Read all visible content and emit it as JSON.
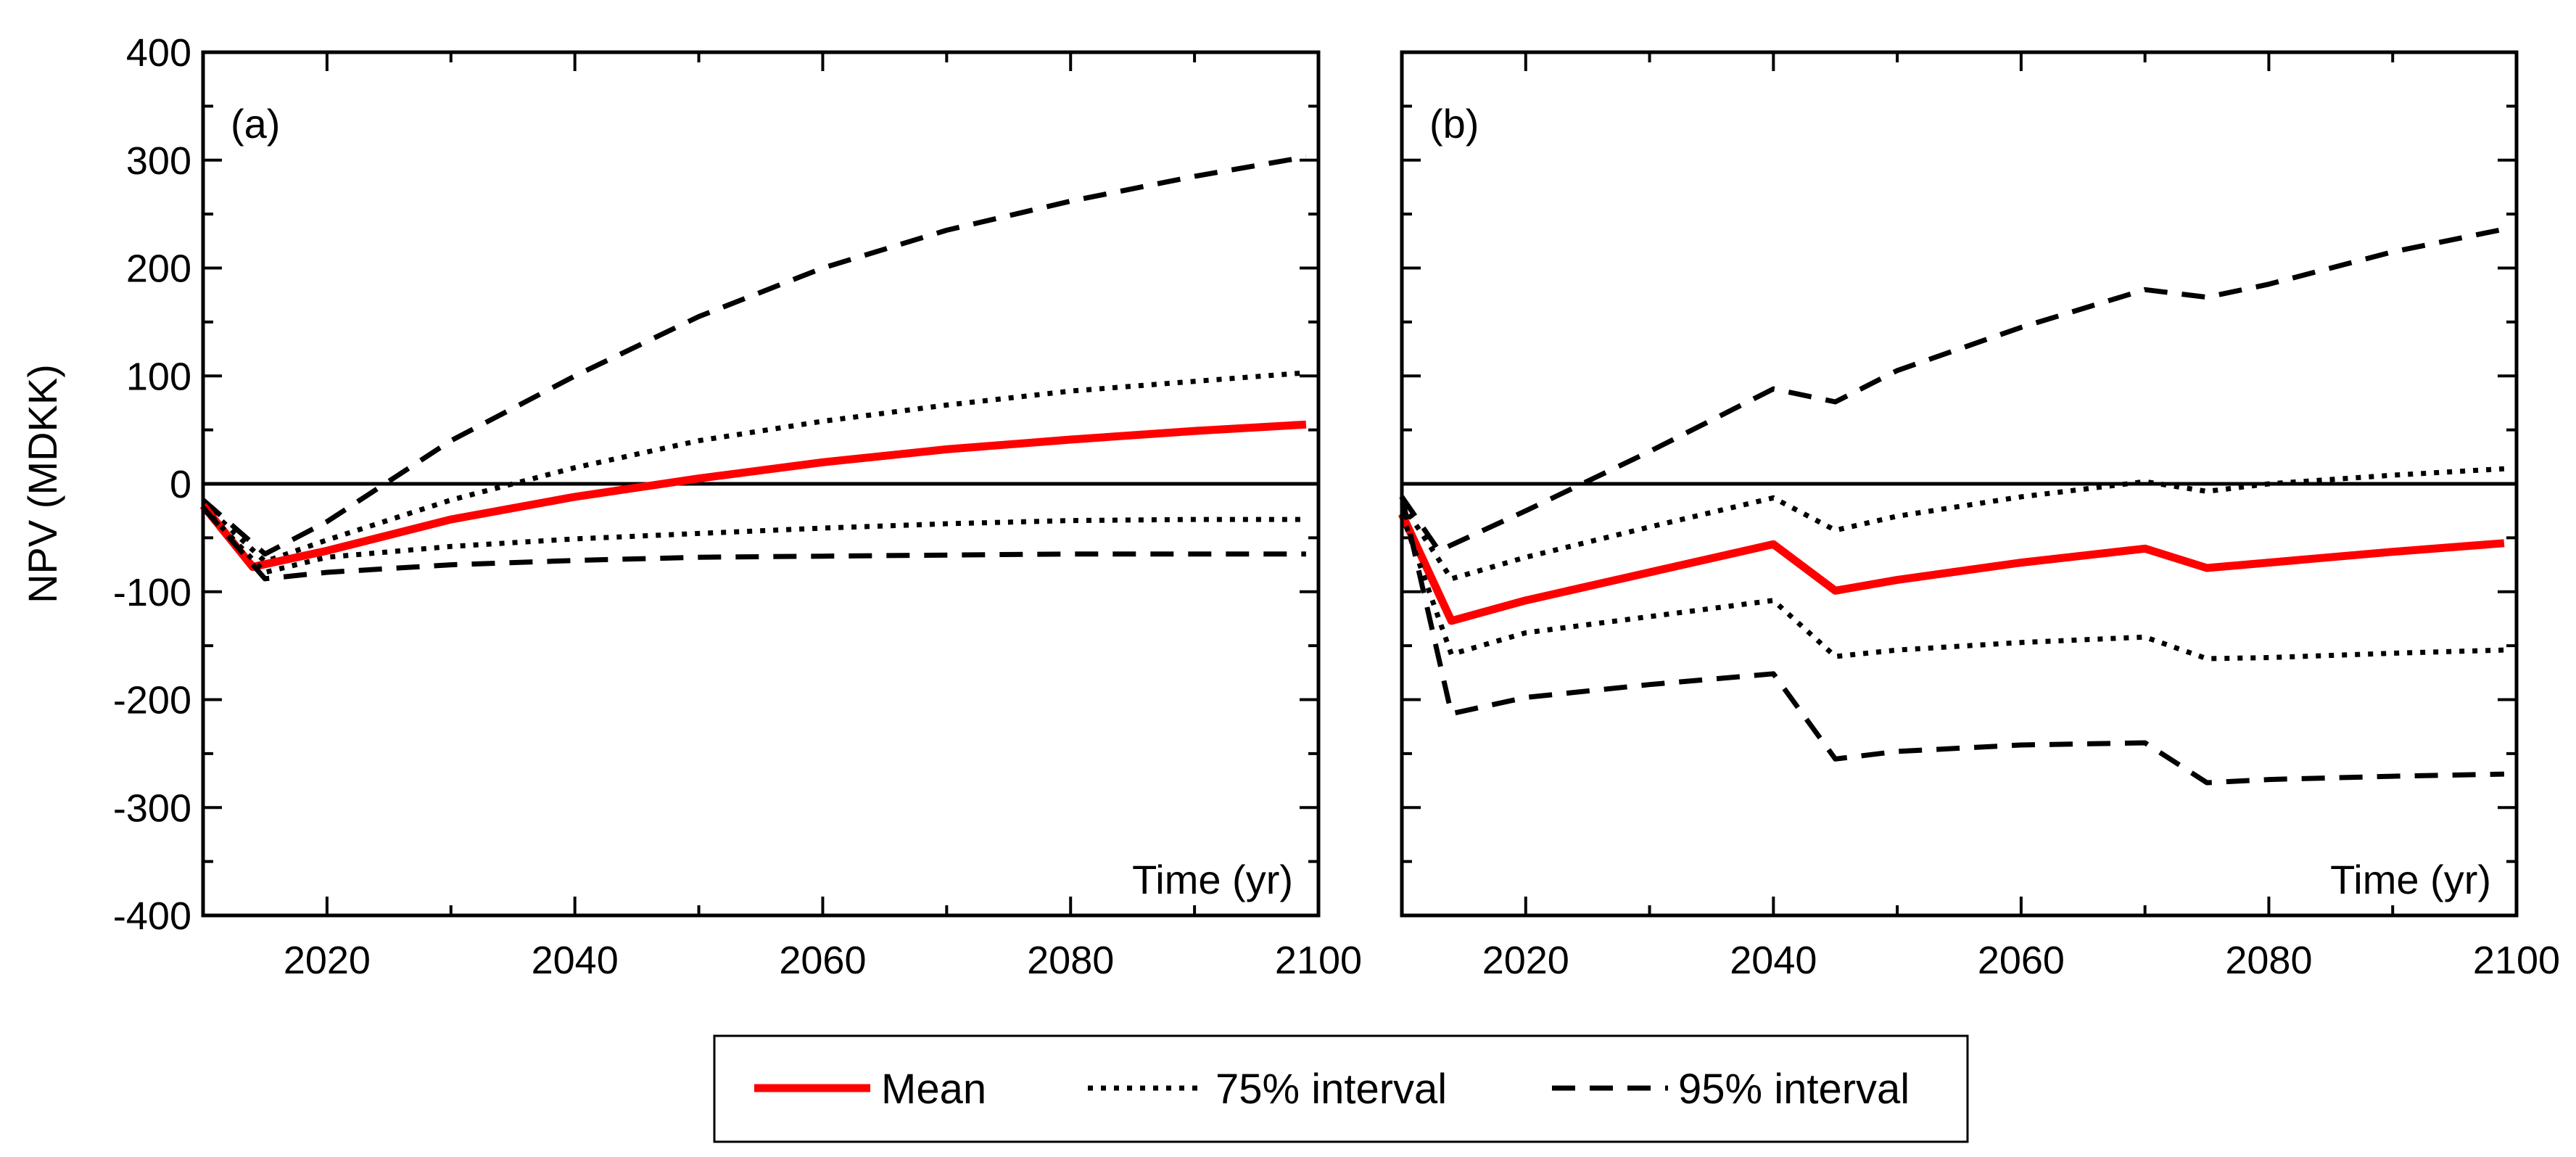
{
  "chart_data": [
    {
      "type": "line",
      "panel_label": "(a)",
      "xlabel": "Time (yr)",
      "ylabel": "NPV (MDKK)",
      "xlim": [
        2010,
        2100
      ],
      "ylim": [
        -400,
        400
      ],
      "xticks": [
        "2020",
        "2040",
        "2060",
        "2080",
        "2100"
      ],
      "yticks": [
        "400",
        "300",
        "200",
        "100",
        "0",
        "-100",
        "-200",
        "-300",
        "-400"
      ],
      "zero_line": true,
      "series": [
        {
          "name": "95% interval upper",
          "style": "dashed",
          "x": [
            2010,
            2015,
            2020,
            2030,
            2040,
            2050,
            2060,
            2070,
            2080,
            2090,
            2099
          ],
          "y": [
            -15,
            -65,
            -35,
            40,
            100,
            155,
            200,
            235,
            262,
            285,
            303
          ]
        },
        {
          "name": "75% interval upper",
          "style": "dotted",
          "x": [
            2010,
            2015,
            2020,
            2030,
            2040,
            2050,
            2060,
            2070,
            2080,
            2090,
            2099
          ],
          "y": [
            -18,
            -72,
            -52,
            -15,
            15,
            40,
            58,
            73,
            86,
            95,
            103
          ]
        },
        {
          "name": "Mean",
          "style": "solid",
          "x": [
            2010,
            2014,
            2020,
            2030,
            2040,
            2050,
            2060,
            2070,
            2080,
            2090,
            2099
          ],
          "y": [
            -20,
            -77,
            -62,
            -33,
            -12,
            5,
            20,
            32,
            41,
            49,
            55
          ]
        },
        {
          "name": "75% interval lower",
          "style": "dotted",
          "x": [
            2010,
            2015,
            2020,
            2030,
            2040,
            2050,
            2060,
            2070,
            2080,
            2090,
            2099
          ],
          "y": [
            -22,
            -82,
            -68,
            -58,
            -51,
            -46,
            -41,
            -37,
            -34,
            -33,
            -33
          ]
        },
        {
          "name": "95% interval lower",
          "style": "dashed",
          "x": [
            2010,
            2015,
            2020,
            2030,
            2040,
            2050,
            2060,
            2070,
            2080,
            2090,
            2099
          ],
          "y": [
            -22,
            -88,
            -82,
            -75,
            -71,
            -68,
            -67,
            -66,
            -65,
            -65,
            -65
          ]
        }
      ]
    },
    {
      "type": "line",
      "panel_label": "(b)",
      "xlabel": "Time (yr)",
      "ylabel": "",
      "xlim": [
        2010,
        2100
      ],
      "ylim": [
        -400,
        400
      ],
      "xticks": [
        "2020",
        "2040",
        "2060",
        "2080",
        "2100"
      ],
      "yticks": [],
      "zero_line": true,
      "series": [
        {
          "name": "95% interval upper",
          "style": "dashed",
          "x": [
            2010,
            2013,
            2020,
            2030,
            2040,
            2045,
            2050,
            2060,
            2070,
            2075,
            2080,
            2090,
            2099
          ],
          "y": [
            -12,
            -62,
            -25,
            30,
            88,
            76,
            105,
            145,
            180,
            173,
            185,
            215,
            236
          ]
        },
        {
          "name": "75% interval upper",
          "style": "dotted",
          "x": [
            2010,
            2014,
            2020,
            2030,
            2040,
            2045,
            2050,
            2060,
            2070,
            2075,
            2080,
            2090,
            2099
          ],
          "y": [
            -18,
            -88,
            -68,
            -40,
            -13,
            -43,
            -30,
            -12,
            2,
            -7,
            0,
            8,
            14
          ]
        },
        {
          "name": "Mean",
          "style": "solid",
          "x": [
            2010,
            2014,
            2020,
            2030,
            2040,
            2045,
            2050,
            2060,
            2070,
            2075,
            2080,
            2090,
            2099
          ],
          "y": [
            -28,
            -127,
            -108,
            -82,
            -56,
            -99,
            -89,
            -73,
            -60,
            -78,
            -73,
            -63,
            -55
          ]
        },
        {
          "name": "75% interval lower",
          "style": "dotted",
          "x": [
            2010,
            2014,
            2020,
            2030,
            2040,
            2045,
            2050,
            2060,
            2070,
            2075,
            2080,
            2090,
            2099
          ],
          "y": [
            -28,
            -158,
            -138,
            -123,
            -108,
            -160,
            -154,
            -147,
            -142,
            -162,
            -161,
            -157,
            -154
          ]
        },
        {
          "name": "95% interval lower",
          "style": "dashed",
          "x": [
            2010,
            2014,
            2020,
            2030,
            2040,
            2045,
            2050,
            2060,
            2070,
            2075,
            2080,
            2090,
            2099
          ],
          "y": [
            -12,
            -213,
            -198,
            -186,
            -176,
            -255,
            -248,
            -242,
            -240,
            -277,
            -274,
            -271,
            -269
          ]
        }
      ]
    }
  ],
  "legend": {
    "items": [
      {
        "label": "Mean",
        "style": "solid"
      },
      {
        "label": "75% interval",
        "style": "dotted"
      },
      {
        "label": "95% interval",
        "style": "dashed"
      }
    ]
  },
  "colors": {
    "mean": "#ff0000",
    "interval": "#000000",
    "axis": "#000000"
  }
}
